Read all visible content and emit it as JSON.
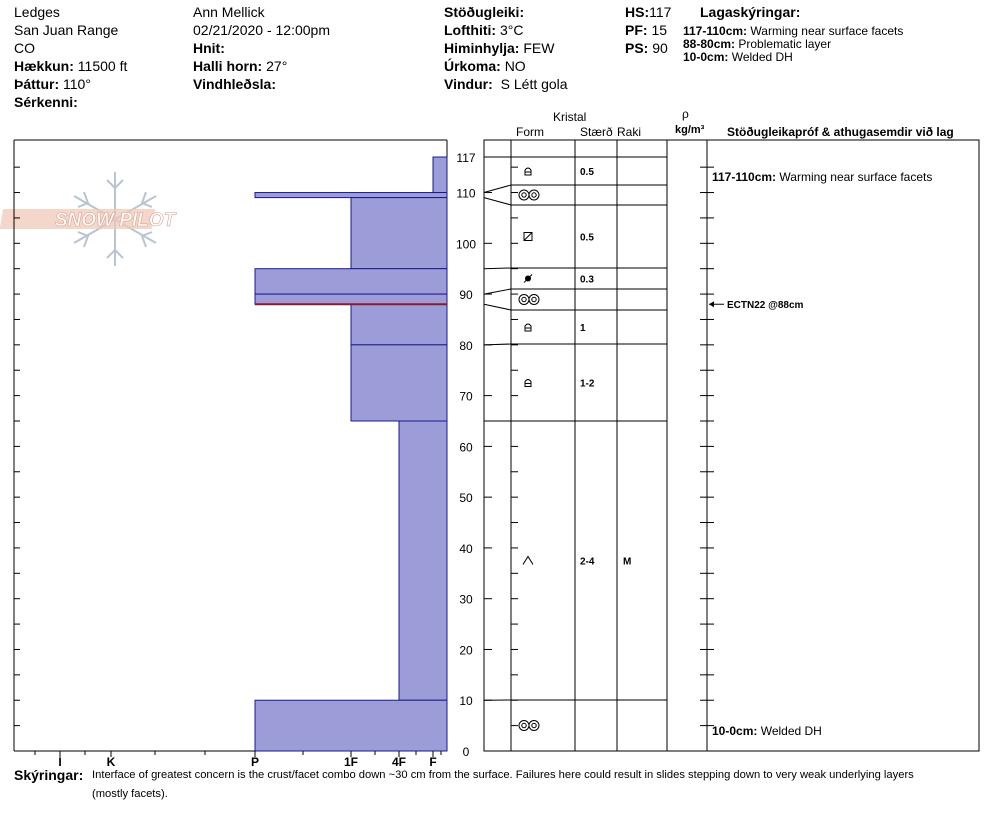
{
  "header": {
    "site": "Ledges",
    "range": "San Juan Range",
    "state": "CO",
    "elevation_label": "Hækkun:",
    "elevation": "11500 ft",
    "aspect_label": "Þáttur:",
    "aspect": "110°",
    "features_label": "Sérkenni:",
    "observer": "Ann Mellick",
    "datetime": "02/21/2020 - 12:00pm",
    "coords_label": "Hnit:",
    "slope_label": "Halli horn:",
    "slope": "27°",
    "wind_loading_label": "Vindhleðsla:",
    "stability_label": "Stöðugleiki:",
    "air_temp_label": "Lofthiti:",
    "air_temp": "3°C",
    "sky_label": "Himinhylja:",
    "sky": "FEW",
    "precip_label": "Úrkoma:",
    "precip": "NO",
    "wind_label": "Vindur:",
    "wind": "S Létt gola",
    "hs_label": "HS:",
    "hs": "117",
    "pf_label": "PF:",
    "pf": "15",
    "ps_label": "PS:",
    "ps": "90",
    "legend_title": "Lagaskýringar:",
    "legend_items": [
      {
        "range": "117-110cm:",
        "text": "Warming near surface facets"
      },
      {
        "range": "88-80cm:",
        "text": "Problematic layer"
      },
      {
        "range": "10-0cm:",
        "text": "Welded DH"
      }
    ]
  },
  "columns": {
    "crystal": "Kristal",
    "form": "Form",
    "size": "Stærð",
    "moisture": "Raki",
    "rho": "ρ",
    "density_unit": "kg/m³",
    "tests": "Stöðugleikapróf & athugasemdir við lag"
  },
  "watermark": "SNOW PILOT",
  "comments_label": "Skýringar:",
  "comments_line1": "Interface of greatest concern is the crust/facet combo down ~30 cm from the surface. Failures here could result in slides stepping down to very weak underlying layers",
  "comments_line2": "(mostly facets).",
  "colors": {
    "hardness_fill": "#9c9cd8",
    "hardness_stroke": "#1a1a8c",
    "problem_layer": "#8b1a2e"
  },
  "chart_data": {
    "type": "bar",
    "orientation": "horizontal-step",
    "height_axis": {
      "min": 0,
      "max": 117,
      "ticks": [
        117,
        110,
        100,
        90,
        80,
        70,
        60,
        50,
        40,
        30,
        20,
        10,
        0
      ]
    },
    "hardness_axis": {
      "labels": [
        "I",
        "K",
        "P",
        "1F",
        "4F",
        "F"
      ]
    },
    "layers": [
      {
        "top": 117,
        "bottom": 110,
        "hardness": "F",
        "form": "facet-rounding",
        "size": "0.5",
        "moisture": ""
      },
      {
        "top": 110,
        "bottom": 109,
        "hardness": "P",
        "form": "melt-freeze",
        "size": "",
        "moisture": ""
      },
      {
        "top": 109,
        "bottom": 95,
        "hardness": "1F",
        "form": "faceted",
        "size": "0.5",
        "moisture": ""
      },
      {
        "top": 95,
        "bottom": 90,
        "hardness": "P",
        "form": "surface-hoar",
        "size": "0.3",
        "moisture": ""
      },
      {
        "top": 90,
        "bottom": 88,
        "hardness": "P",
        "form": "melt-freeze",
        "size": "",
        "moisture": ""
      },
      {
        "top": 88,
        "bottom": 80,
        "hardness": "1F",
        "form": "facet-rounding",
        "size": "1",
        "moisture": ""
      },
      {
        "top": 80,
        "bottom": 65,
        "hardness": "1F",
        "form": "facet-rounding",
        "size": "1-2",
        "moisture": ""
      },
      {
        "top": 65,
        "bottom": 10,
        "hardness": "4F",
        "form": "depth-hoar",
        "size": "2-4",
        "moisture": "M"
      },
      {
        "top": 10,
        "bottom": 0,
        "hardness": "P",
        "form": "melt-freeze",
        "size": "",
        "moisture": ""
      }
    ],
    "problem_layer_height": 88,
    "test_results": [
      {
        "height": 88,
        "text": "ECTN22 @88cm"
      }
    ],
    "layer_comments": [
      {
        "height": 113.5,
        "range": "117-110cm:",
        "text": "Warming near surface facets"
      },
      {
        "height": 5,
        "range": "10-0cm:",
        "text": "Welded DH"
      }
    ]
  }
}
